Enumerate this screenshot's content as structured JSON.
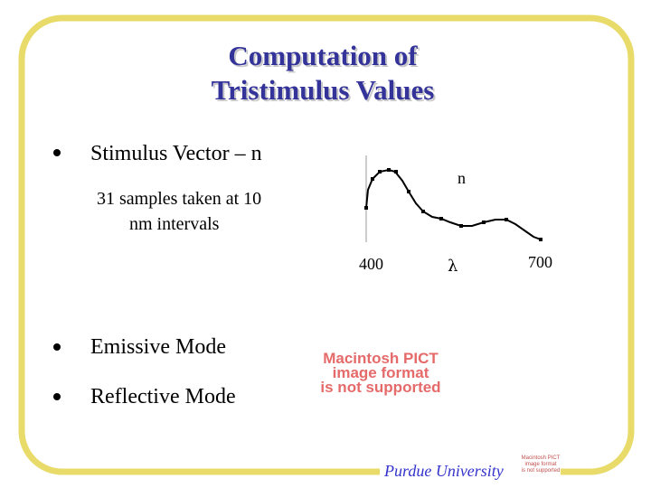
{
  "title": [
    "Computation of",
    "Tristimulus Values"
  ],
  "bullets": [
    {
      "text": "Stimulus Vector – n",
      "sub": [
        "31 samples taken at 10",
        "nm intervals"
      ]
    },
    {
      "text": "Emissive Mode"
    },
    {
      "text": "Reflective Mode"
    }
  ],
  "plot": {
    "curve_label": "n",
    "axis_labels": [
      "400",
      "λ",
      "700"
    ]
  },
  "placeholder": [
    "Macintosh PICT",
    "image format",
    "is not supported"
  ],
  "footer": {
    "text": "Purdue University",
    "placeholder": [
      "Macintosh PICT",
      "image format",
      "is not supported"
    ]
  }
}
